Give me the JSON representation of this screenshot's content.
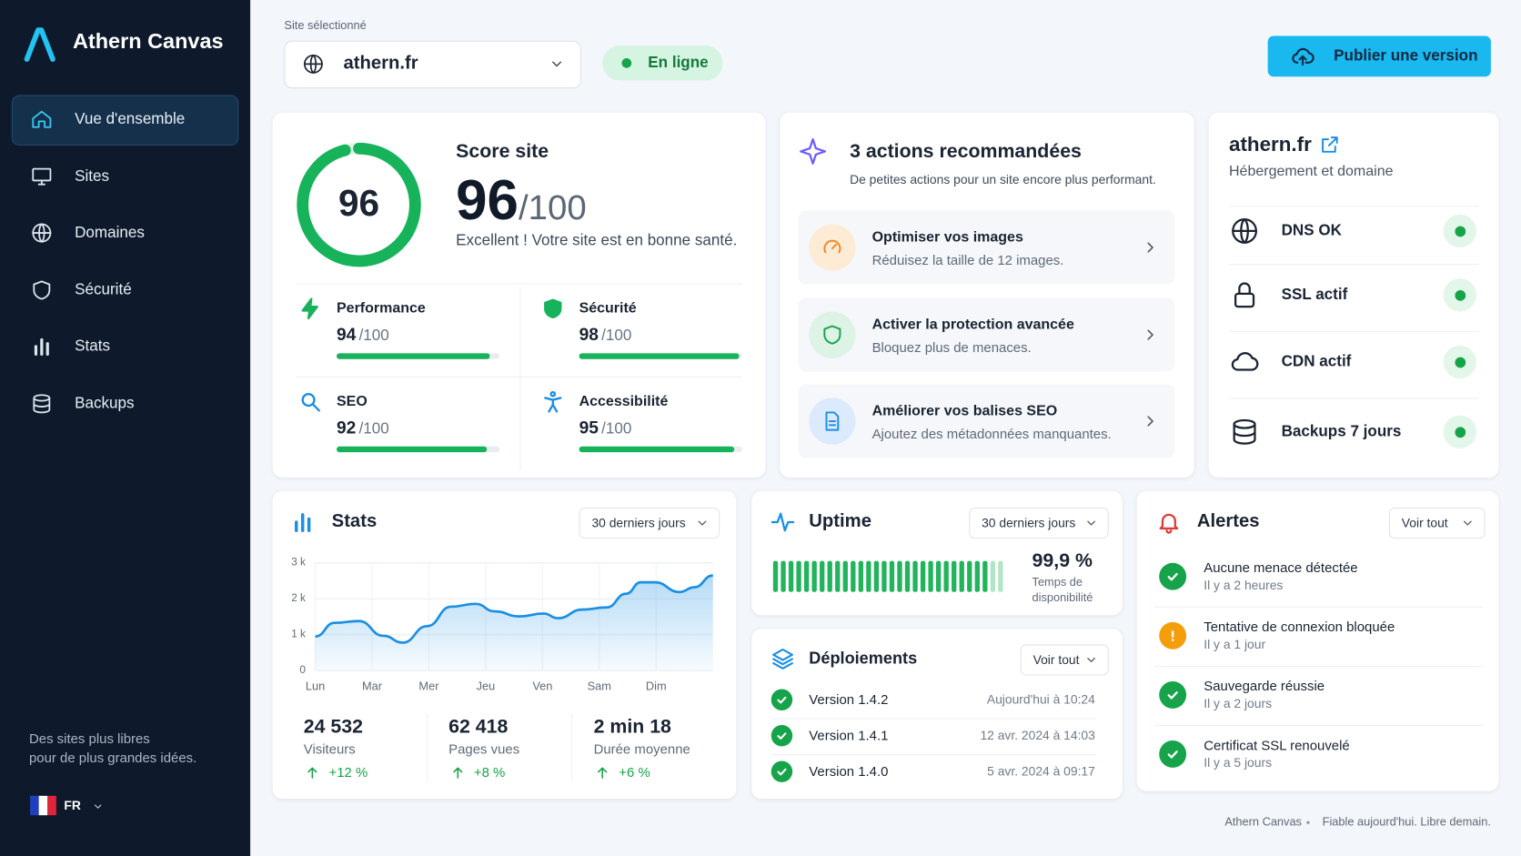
{
  "sidebar": {
    "brand": "Athern Canvas",
    "nav": [
      "Vue d'ensemble",
      "Sites",
      "Domaines",
      "Sécurité",
      "Stats",
      "Backups"
    ],
    "active": 0,
    "tagline": [
      "Des sites plus libres",
      "pour de plus grandes idées."
    ],
    "language": "FR"
  },
  "header": {
    "site_label": "Site sélectionné",
    "site": "athern.fr",
    "status": "En ligne",
    "publish": "Publier une version"
  },
  "score": {
    "title": "Score site",
    "value": 96,
    "out_of": {
      "value": 100,
      "label": "/100"
    },
    "message": "Excellent ! Votre site est en bonne santé.",
    "metrics": [
      {
        "name": "Performance",
        "value": 94,
        "out_of": {
          "value": 100,
          "label": "/100"
        }
      },
      {
        "name": "Sécurité",
        "value": 98,
        "out_of": {
          "value": 100,
          "label": "/100"
        }
      },
      {
        "name": "SEO",
        "value": 92,
        "out_of": {
          "value": 100,
          "label": "/100"
        }
      },
      {
        "name": "Accessibilité",
        "value": 95,
        "out_of": {
          "value": 100,
          "label": "/100"
        }
      }
    ]
  },
  "actions": {
    "title": "3 actions recommandées",
    "subtitle": "De petites actions pour un site encore plus performant.",
    "items": [
      {
        "title": "Optimiser vos images",
        "description": "Réduisez la taille de 12 images."
      },
      {
        "title": "Activer la protection avancée",
        "description": "Bloquez plus de menaces."
      },
      {
        "title": "Améliorer vos balises SEO",
        "description": "Ajoutez des métadonnées manquantes."
      }
    ]
  },
  "domain": {
    "name": "athern.fr",
    "subtitle": "Hébergement et domaine",
    "checks": [
      "DNS OK",
      "SSL actif",
      "CDN actif",
      "Backups 7 jours"
    ]
  },
  "stats": {
    "title": "Stats",
    "period": "30 derniers jours",
    "chart": {
      "type": "line",
      "color": "#1a8fe3",
      "x": [
        0,
        0.34,
        0.77,
        1.2,
        1.54,
        1.97,
        2.39,
        2.82,
        3.16,
        3.59,
        4.02,
        4.27,
        4.7,
        5.13,
        5.47,
        5.73,
        5.98,
        6.41,
        6.67,
        7.0
      ],
      "values": [
        950,
        1330,
        1380,
        970,
        780,
        1240,
        1780,
        1860,
        1650,
        1510,
        1590,
        1460,
        1700,
        1760,
        2140,
        2460,
        2460,
        2190,
        2320,
        2650
      ],
      "xlim": [
        0,
        7
      ],
      "xticks": [
        {
          "value": 0,
          "label": "Lun"
        },
        {
          "value": 1,
          "label": "Mar"
        },
        {
          "value": 2,
          "label": "Mer"
        },
        {
          "value": 3,
          "label": "Jeu"
        },
        {
          "value": 4,
          "label": "Ven"
        },
        {
          "value": 5,
          "label": "Sam"
        },
        {
          "value": 6,
          "label": "Dim"
        }
      ],
      "ylim": [
        0,
        3000
      ],
      "yticks": [
        0,
        {
          "value": 1000,
          "label": "1 k"
        },
        {
          "value": 2000,
          "label": "2 k"
        },
        {
          "value": 3000,
          "label": "3 k"
        }
      ],
      "grid": true
    },
    "summary": [
      {
        "value": "24 532",
        "label": "Visiteurs",
        "change": "+12 %"
      },
      {
        "value": "62 418",
        "label": "Pages vues",
        "change": "+8 %"
      },
      {
        "value": "2 min 18",
        "label": "Durée moyenne",
        "change": "+6 %"
      }
    ]
  },
  "uptime": {
    "title": "Uptime",
    "period": "30 derniers jours",
    "value": "99,9 %",
    "label": "Temps de disponibilité"
  },
  "deployments": {
    "title": "Déploiements",
    "action": "Voir tout",
    "items": [
      {
        "version": "Version 1.4.2",
        "date": "Aujourd'hui à 10:24"
      },
      {
        "version": "Version 1.4.1",
        "date": "12 avr. 2024 à 14:03"
      },
      {
        "version": "Version 1.4.0",
        "date": "5 avr. 2024 à 09:17"
      }
    ]
  },
  "alerts": {
    "title": "Alertes",
    "action": "Voir tout",
    "items": [
      {
        "title": "Aucune menace détectée",
        "time": "Il y a 2 heures",
        "level": "success"
      },
      {
        "title": "Tentative de connexion bloquée",
        "time": "Il y a 1 jour",
        "level": "warning"
      },
      {
        "title": "Sauvegarde réussie",
        "time": "Il y a 2 jours",
        "level": "success"
      },
      {
        "title": "Certificat SSL renouvelé",
        "time": "Il y a 5 jours",
        "level": "success"
      }
    ]
  },
  "footer": {
    "brand": "Athern Canvas",
    "tagline": "Fiable aujourd'hui. Libre demain."
  }
}
